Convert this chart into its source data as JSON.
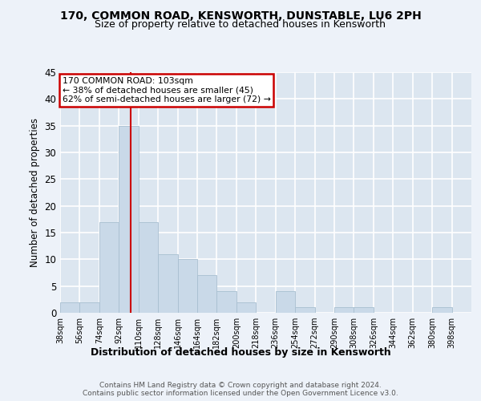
{
  "title": "170, COMMON ROAD, KENSWORTH, DUNSTABLE, LU6 2PH",
  "subtitle": "Size of property relative to detached houses in Kensworth",
  "xlabel": "Distribution of detached houses by size in Kensworth",
  "ylabel": "Number of detached properties",
  "bin_labels": [
    "38sqm",
    "56sqm",
    "74sqm",
    "92sqm",
    "110sqm",
    "128sqm",
    "146sqm",
    "164sqm",
    "182sqm",
    "200sqm",
    "218sqm",
    "236sqm",
    "254sqm",
    "272sqm",
    "290sqm",
    "308sqm",
    "326sqm",
    "344sqm",
    "362sqm",
    "380sqm",
    "398sqm"
  ],
  "bin_edges": [
    38,
    56,
    74,
    92,
    110,
    128,
    146,
    164,
    182,
    200,
    218,
    236,
    254,
    272,
    290,
    308,
    326,
    344,
    362,
    380,
    398
  ],
  "bar_heights": [
    2,
    2,
    17,
    35,
    17,
    11,
    10,
    7,
    4,
    2,
    0,
    4,
    1,
    0,
    1,
    1,
    0,
    0,
    0,
    1
  ],
  "bar_color": "#c9d9e8",
  "bar_edge_color": "#a8bfd0",
  "property_line_x": 103,
  "annotation_text_line1": "170 COMMON ROAD: 103sqm",
  "annotation_text_line2": "← 38% of detached houses are smaller (45)",
  "annotation_text_line3": "62% of semi-detached houses are larger (72) →",
  "annotation_box_color": "#cc0000",
  "vline_color": "#cc0000",
  "fig_bg_color": "#edf2f9",
  "plot_bg_color": "#dce6f0",
  "grid_color": "#ffffff",
  "footer_line1": "Contains HM Land Registry data © Crown copyright and database right 2024.",
  "footer_line2": "Contains public sector information licensed under the Open Government Licence v3.0.",
  "ylim": [
    0,
    45
  ],
  "yticks": [
    0,
    5,
    10,
    15,
    20,
    25,
    30,
    35,
    40,
    45
  ]
}
